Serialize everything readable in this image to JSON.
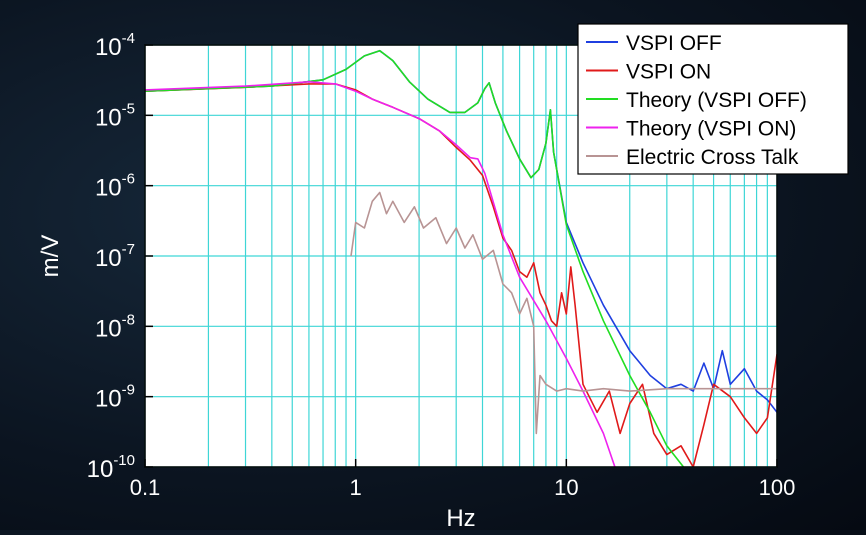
{
  "chart_data": {
    "type": "line",
    "xlabel": "Hz",
    "ylabel": "m/V",
    "xscale": "log",
    "yscale": "log",
    "xlim": [
      0.1,
      100
    ],
    "ylim": [
      1e-10,
      0.0001
    ],
    "grid": true,
    "legend_position": "top-right",
    "x_ticks": [
      {
        "value": 0.1,
        "label": "0.1"
      },
      {
        "value": 1,
        "label": "1"
      },
      {
        "value": 10,
        "label": "10"
      },
      {
        "value": 100,
        "label": "100"
      }
    ],
    "y_ticks": [
      {
        "value": 0.0001,
        "base": "10",
        "exp": "-4"
      },
      {
        "value": 1e-05,
        "base": "10",
        "exp": "-5"
      },
      {
        "value": 1e-06,
        "base": "10",
        "exp": "-6"
      },
      {
        "value": 1e-07,
        "base": "10",
        "exp": "-7"
      },
      {
        "value": 1e-08,
        "base": "10",
        "exp": "-8"
      },
      {
        "value": 1e-09,
        "base": "10",
        "exp": "-9"
      },
      {
        "value": 1e-10,
        "base": "10",
        "exp": "-10"
      }
    ],
    "series": [
      {
        "name": "VSPI OFF",
        "color": "#1f3fe0",
        "points": [
          [
            0.1,
            2.2e-05
          ],
          [
            0.2,
            2.4e-05
          ],
          [
            0.4,
            2.6e-05
          ],
          [
            0.7,
            3.2e-05
          ],
          [
            0.9,
            4.5e-05
          ],
          [
            1.1,
            7e-05
          ],
          [
            1.3,
            8.3e-05
          ],
          [
            1.5,
            6e-05
          ],
          [
            1.8,
            3e-05
          ],
          [
            2.2,
            1.7e-05
          ],
          [
            2.8,
            1.1e-05
          ],
          [
            3.3,
            1.1e-05
          ],
          [
            3.8,
            1.5e-05
          ],
          [
            4.1,
            2.4e-05
          ],
          [
            4.3,
            2.9e-05
          ],
          [
            4.6,
            1.5e-05
          ],
          [
            5.2,
            6e-06
          ],
          [
            6,
            2.4e-06
          ],
          [
            6.8,
            1.3e-06
          ],
          [
            7.4,
            1.7e-06
          ],
          [
            8,
            4e-06
          ],
          [
            8.4,
            1.2e-05
          ],
          [
            8.7,
            3e-06
          ],
          [
            10,
            3e-07
          ],
          [
            12,
            8e-08
          ],
          [
            15,
            2e-08
          ],
          [
            20,
            4.5e-09
          ],
          [
            25,
            2e-09
          ],
          [
            30,
            1.3e-09
          ],
          [
            35,
            1.5e-09
          ],
          [
            40,
            1.2e-09
          ],
          [
            45,
            3e-09
          ],
          [
            50,
            1.3e-09
          ],
          [
            55,
            4.5e-09
          ],
          [
            60,
            1.5e-09
          ],
          [
            70,
            2.5e-09
          ],
          [
            80,
            1.2e-09
          ],
          [
            90,
            9e-10
          ],
          [
            100,
            6e-10
          ]
        ]
      },
      {
        "name": "VSPI ON",
        "color": "#e01a1a",
        "points": [
          [
            0.1,
            2.2e-05
          ],
          [
            0.3,
            2.5e-05
          ],
          [
            0.6,
            2.8e-05
          ],
          [
            0.8,
            2.8e-05
          ],
          [
            1,
            2.3e-05
          ],
          [
            1.2,
            1.7e-05
          ],
          [
            1.5,
            1.3e-05
          ],
          [
            2,
            9e-06
          ],
          [
            2.5,
            6e-06
          ],
          [
            3,
            3.5e-06
          ],
          [
            3.5,
            2.3e-06
          ],
          [
            4,
            1.4e-06
          ],
          [
            4.5,
            5e-07
          ],
          [
            5,
            1.8e-07
          ],
          [
            5.5,
            1.2e-07
          ],
          [
            6,
            6e-08
          ],
          [
            6.5,
            5e-08
          ],
          [
            7,
            8e-08
          ],
          [
            7.5,
            3e-08
          ],
          [
            8,
            2e-08
          ],
          [
            8.5,
            1.2e-08
          ],
          [
            9,
            1e-08
          ],
          [
            9.5,
            3e-08
          ],
          [
            10,
            1.5e-08
          ],
          [
            10.5,
            7e-08
          ],
          [
            11,
            2e-08
          ],
          [
            12,
            1.5e-09
          ],
          [
            14,
            6e-10
          ],
          [
            16,
            1.2e-09
          ],
          [
            18,
            3e-10
          ],
          [
            20,
            8e-10
          ],
          [
            23,
            1.5e-09
          ],
          [
            26,
            3e-10
          ],
          [
            30,
            1.5e-10
          ],
          [
            35,
            2e-10
          ],
          [
            40,
            1e-10
          ],
          [
            45,
            4e-10
          ],
          [
            50,
            1.5e-09
          ],
          [
            60,
            1e-09
          ],
          [
            70,
            5e-10
          ],
          [
            80,
            3e-10
          ],
          [
            90,
            5e-10
          ],
          [
            100,
            4e-09
          ]
        ]
      },
      {
        "name": "Theory (VSPI OFF)",
        "color": "#22dd22",
        "points": [
          [
            0.1,
            2.2e-05
          ],
          [
            0.2,
            2.4e-05
          ],
          [
            0.4,
            2.6e-05
          ],
          [
            0.7,
            3.2e-05
          ],
          [
            0.9,
            4.5e-05
          ],
          [
            1.1,
            7e-05
          ],
          [
            1.3,
            8.3e-05
          ],
          [
            1.5,
            6e-05
          ],
          [
            1.8,
            3e-05
          ],
          [
            2.2,
            1.7e-05
          ],
          [
            2.8,
            1.1e-05
          ],
          [
            3.3,
            1.1e-05
          ],
          [
            3.8,
            1.5e-05
          ],
          [
            4.1,
            2.4e-05
          ],
          [
            4.3,
            2.9e-05
          ],
          [
            4.6,
            1.5e-05
          ],
          [
            5.2,
            6e-06
          ],
          [
            6,
            2.4e-06
          ],
          [
            6.8,
            1.3e-06
          ],
          [
            7.4,
            1.7e-06
          ],
          [
            8,
            4e-06
          ],
          [
            8.4,
            1.2e-05
          ],
          [
            8.7,
            3e-06
          ],
          [
            10,
            2.8e-07
          ],
          [
            12,
            6e-08
          ],
          [
            15,
            1.2e-08
          ],
          [
            20,
            2e-09
          ],
          [
            25,
            6e-10
          ],
          [
            30,
            2e-10
          ],
          [
            36,
            1e-10
          ]
        ]
      },
      {
        "name": "Theory (VSPI ON)",
        "color": "#ee22ee",
        "points": [
          [
            0.1,
            2.3e-05
          ],
          [
            0.3,
            2.6e-05
          ],
          [
            0.6,
            3e-05
          ],
          [
            0.8,
            2.8e-05
          ],
          [
            1,
            2.2e-05
          ],
          [
            1.2,
            1.7e-05
          ],
          [
            1.5,
            1.3e-05
          ],
          [
            2,
            9e-06
          ],
          [
            2.5,
            6e-06
          ],
          [
            3,
            3.8e-06
          ],
          [
            3.5,
            2.5e-06
          ],
          [
            3.8,
            2.4e-06
          ],
          [
            4.1,
            1.5e-06
          ],
          [
            5,
            2e-07
          ],
          [
            6,
            5e-08
          ],
          [
            8,
            1.2e-08
          ],
          [
            10,
            3.5e-09
          ],
          [
            12,
            1.2e-09
          ],
          [
            15,
            3e-10
          ],
          [
            17,
            1e-10
          ]
        ]
      },
      {
        "name": "Electric Cross Talk",
        "color": "#b89494",
        "points": [
          [
            0.95,
            1e-07
          ],
          [
            1,
            3e-07
          ],
          [
            1.1,
            2.5e-07
          ],
          [
            1.2,
            6e-07
          ],
          [
            1.3,
            8e-07
          ],
          [
            1.4,
            4e-07
          ],
          [
            1.5,
            6e-07
          ],
          [
            1.7,
            3e-07
          ],
          [
            1.9,
            5e-07
          ],
          [
            2.1,
            2.5e-07
          ],
          [
            2.4,
            3.5e-07
          ],
          [
            2.7,
            1.5e-07
          ],
          [
            3,
            2.5e-07
          ],
          [
            3.3,
            1.3e-07
          ],
          [
            3.6,
            2e-07
          ],
          [
            4,
            9e-08
          ],
          [
            4.5,
            1.2e-07
          ],
          [
            5,
            4e-08
          ],
          [
            5.5,
            3e-08
          ],
          [
            6,
            1.5e-08
          ],
          [
            6.5,
            2.5e-08
          ],
          [
            7,
            1e-08
          ],
          [
            7.2,
            3e-10
          ],
          [
            7.5,
            2e-09
          ],
          [
            8,
            1.5e-09
          ],
          [
            9,
            1.2e-09
          ],
          [
            10,
            1.3e-09
          ],
          [
            12,
            1.2e-09
          ],
          [
            15,
            1.3e-09
          ],
          [
            20,
            1.2e-09
          ],
          [
            30,
            1.3e-09
          ],
          [
            50,
            1.3e-09
          ],
          [
            100,
            1.3e-09
          ]
        ]
      }
    ]
  }
}
